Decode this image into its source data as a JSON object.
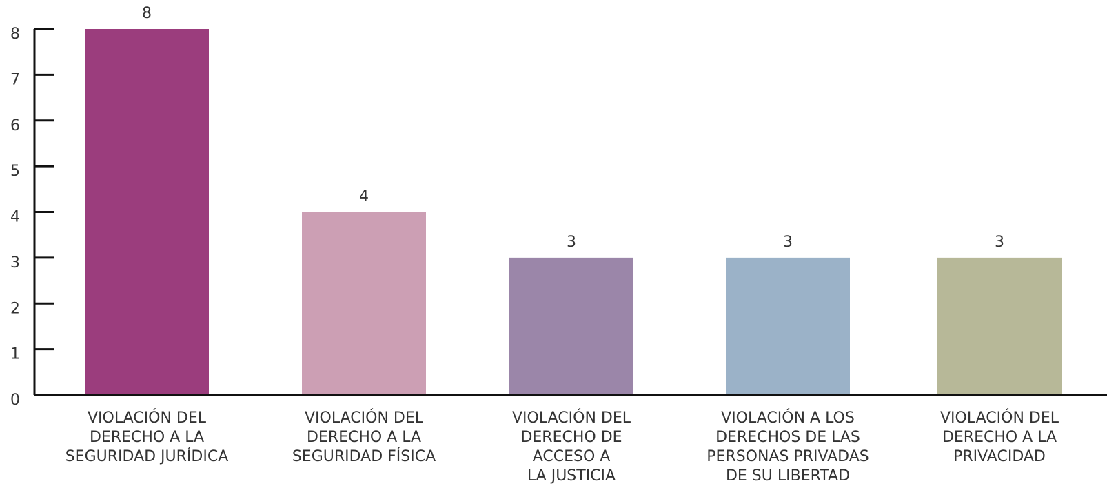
{
  "chart_data": {
    "type": "bar",
    "categories": [
      [
        "VIOLACIÓN DEL",
        "DERECHO A LA",
        "SEGURIDAD JURÍDICA"
      ],
      [
        "VIOLACIÓN DEL",
        "DERECHO A LA",
        "SEGURIDAD FÍSICA"
      ],
      [
        "VIOLACIÓN DEL",
        "DERECHO DE",
        "ACCESO A",
        "LA JUSTICIA"
      ],
      [
        "VIOLACIÓN A LOS",
        "DERECHOS DE LAS",
        "PERSONAS PRIVADAS",
        "DE SU LIBERTAD"
      ],
      [
        "VIOLACIÓN DEL",
        "DERECHO A LA",
        "PRIVACIDAD"
      ]
    ],
    "values": [
      8,
      4,
      3,
      3,
      3
    ],
    "colors": [
      "#9b3d7d",
      "#cc9fb4",
      "#9b86a9",
      "#9bb2c8",
      "#b7b898"
    ],
    "ylim": [
      0,
      8
    ],
    "yticks": [
      0,
      1,
      2,
      3,
      4,
      5,
      6,
      7,
      8
    ],
    "grid": false
  }
}
